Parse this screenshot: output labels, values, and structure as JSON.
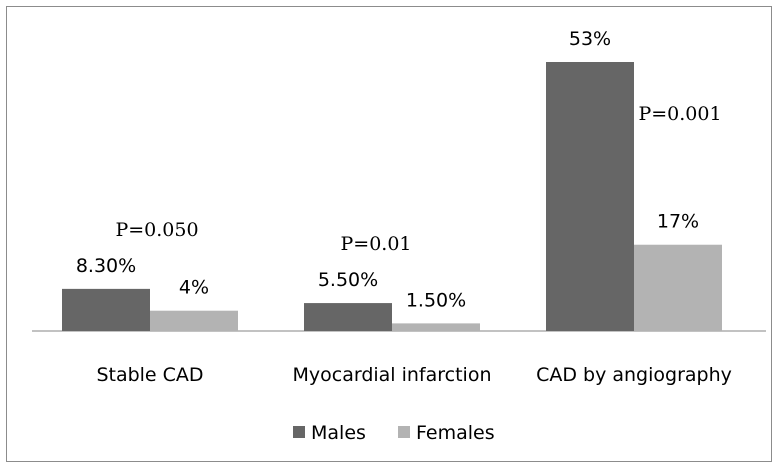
{
  "chart_data": {
    "type": "bar",
    "categories": [
      "Stable CAD",
      "Myocardial infarction",
      "CAD by angiography"
    ],
    "series": [
      {
        "name": "Males",
        "values": [
          8.3,
          5.5,
          53
        ],
        "labels": [
          "8.30%",
          "5.50%",
          "53%"
        ],
        "color": "#666666"
      },
      {
        "name": "Females",
        "values": [
          4,
          1.5,
          17
        ],
        "labels": [
          "4%",
          "1.50%",
          "17%"
        ],
        "color": "#b3b3b3"
      }
    ],
    "annotations": [
      "P=0.050",
      "P=0.01",
      "P=0.001"
    ],
    "ylim": [
      0,
      53
    ],
    "legend": "bottom",
    "grid": false
  }
}
